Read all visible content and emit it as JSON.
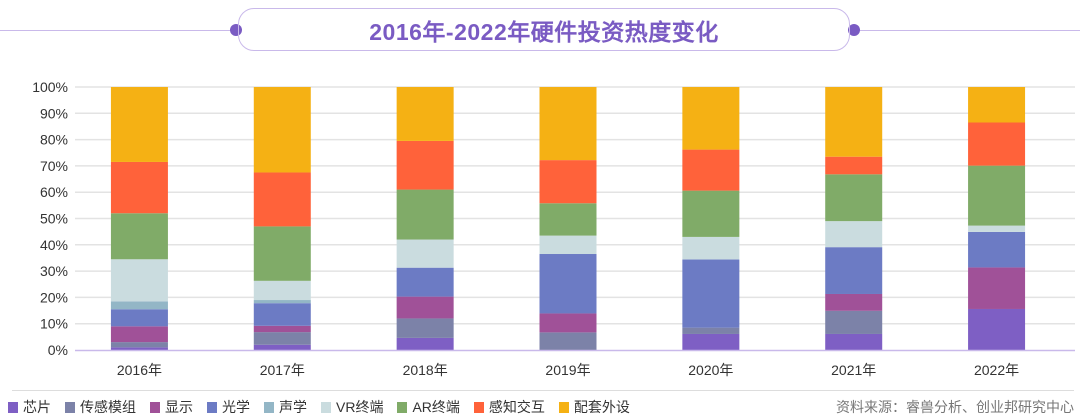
{
  "chart_data": {
    "type": "bar",
    "stacked": true,
    "title": "2016年-2022年硬件投资热度变化",
    "categories": [
      "2016年",
      "2017年",
      "2018年",
      "2019年",
      "2020年",
      "2021年",
      "2022年"
    ],
    "ylim": [
      0,
      100
    ],
    "yticks": [
      "0%",
      "10%",
      "20%",
      "30%",
      "40%",
      "50%",
      "60%",
      "70%",
      "80%",
      "90%",
      "100%"
    ],
    "grid": true,
    "legend_position": "bottom-left",
    "series": [
      {
        "name": "芯片",
        "color": "#7e5fc4",
        "values": [
          1,
          2,
          4.6,
          0,
          6.1,
          6.1,
          15.6
        ]
      },
      {
        "name": "传感模组",
        "color": "#7c82a8",
        "values": [
          2,
          4.8,
          7.4,
          6.7,
          2.4,
          8.8,
          0
        ]
      },
      {
        "name": "显示",
        "color": "#a05198",
        "values": [
          6,
          2.4,
          8.3,
          7.2,
          0,
          6.4,
          15.8
        ]
      },
      {
        "name": "光学",
        "color": "#6c7bc4",
        "values": [
          6.5,
          8.6,
          11,
          22.6,
          25.9,
          17.8,
          13.5
        ]
      },
      {
        "name": "声学",
        "color": "#93b6c6",
        "values": [
          3,
          1.2,
          0,
          0,
          0,
          0,
          0
        ]
      },
      {
        "name": "VR终端",
        "color": "#cadcdf",
        "values": [
          16,
          7.3,
          10.7,
          7,
          8.6,
          9.9,
          2.4
        ]
      },
      {
        "name": "AR终端",
        "color": "#80ab68",
        "values": [
          17.5,
          20.7,
          19,
          12.3,
          17.6,
          17.8,
          22.8
        ]
      },
      {
        "name": "感知交互",
        "color": "#ff623a",
        "values": [
          19.5,
          20.5,
          18.5,
          16.4,
          15.6,
          6.7,
          16.4
        ]
      },
      {
        "name": "配套外设",
        "color": "#f5b114",
        "values": [
          28.5,
          32.5,
          20.5,
          27.8,
          23.8,
          26.5,
          13.5
        ]
      }
    ]
  },
  "source": "资料来源：睿兽分析、创业邦研究中心"
}
